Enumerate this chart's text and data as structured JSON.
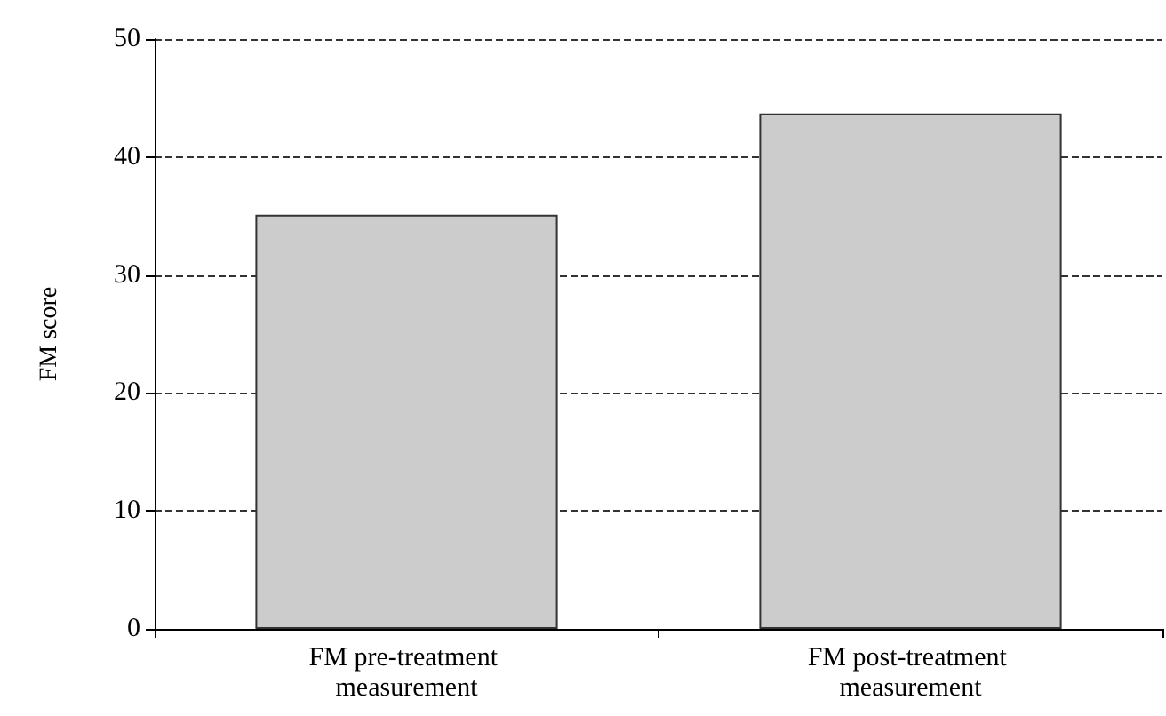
{
  "chart_data": {
    "type": "bar",
    "ylabel": "FM score",
    "categories": [
      "FM pre-treatment measurement",
      "FM post-treatment measurement"
    ],
    "values": [
      35.1,
      43.7
    ],
    "color": "#cccccc",
    "ylim": [
      0,
      50
    ],
    "yticks": [
      0,
      10,
      20,
      30,
      40,
      50
    ],
    "grid": "y"
  }
}
